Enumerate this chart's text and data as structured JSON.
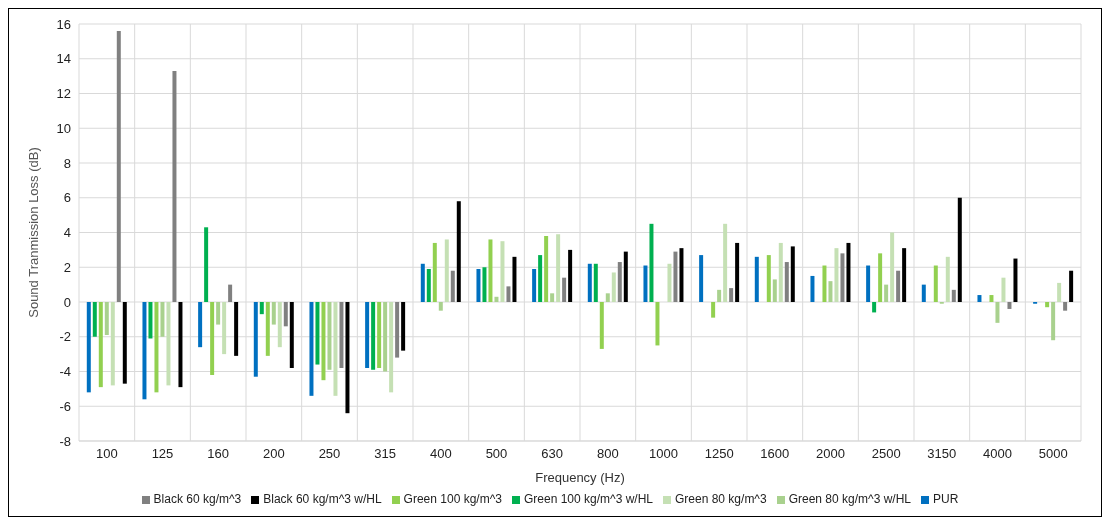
{
  "chart_data": {
    "type": "bar",
    "xlabel": "Frequency (Hz)",
    "ylabel": "Sound Tranmission Loss (dB)",
    "categories": [
      "100",
      "125",
      "160",
      "200",
      "250",
      "315",
      "400",
      "500",
      "630",
      "800",
      "1000",
      "1250",
      "1600",
      "2000",
      "2500",
      "3150",
      "4000",
      "5000"
    ],
    "series": [
      {
        "name": "PUR",
        "color": "#0070c0",
        "values": [
          -5.2,
          -5.6,
          -2.6,
          -4.3,
          -5.4,
          -3.8,
          2.2,
          1.9,
          1.9,
          2.2,
          2.1,
          2.7,
          2.6,
          1.5,
          2.1,
          1.0,
          0.4,
          -0.1
        ]
      },
      {
        "name": "Green 100 kg/m^3 w/HL",
        "color": "#00b050",
        "values": [
          -2.0,
          -2.1,
          4.3,
          -0.7,
          -3.6,
          -3.9,
          1.9,
          2.0,
          2.7,
          2.2,
          4.5,
          0,
          0,
          0,
          -0.6,
          0,
          0,
          0
        ]
      },
      {
        "name": "Green 100 kg/m^3",
        "color": "#92d050",
        "values": [
          -4.9,
          -5.2,
          -4.2,
          -3.1,
          -4.5,
          -3.8,
          3.4,
          3.6,
          3.8,
          -2.7,
          -2.5,
          -0.9,
          2.7,
          2.1,
          2.8,
          2.1,
          0.4,
          -0.3
        ]
      },
      {
        "name": "Green 80 kg/m^3 w/HL",
        "color": "#a9d18e",
        "values": [
          -1.9,
          -2.0,
          -1.3,
          -1.3,
          -3.9,
          -4.0,
          -0.5,
          0.3,
          0.5,
          0.5,
          0,
          0.7,
          1.3,
          1.2,
          1.0,
          -0.1,
          -1.2,
          -2.2
        ]
      },
      {
        "name": "Green 80 kg/m^3",
        "color": "#c5e0b4",
        "values": [
          -4.8,
          -4.8,
          -3.0,
          -2.6,
          -5.4,
          -5.2,
          3.6,
          3.5,
          3.9,
          1.7,
          2.2,
          4.5,
          3.4,
          3.1,
          4.0,
          2.6,
          1.4,
          1.1
        ]
      },
      {
        "name": "Black 60 kg/m^3",
        "color": "#808080",
        "values": [
          15.6,
          13.3,
          1.0,
          -1.4,
          -3.8,
          -3.2,
          1.8,
          0.9,
          1.4,
          2.3,
          2.9,
          0.8,
          2.3,
          2.8,
          1.8,
          0.7,
          -0.4,
          -0.5
        ]
      },
      {
        "name": "Black 60 kg/m^3 w/HL",
        "color": "#000000",
        "values": [
          -4.7,
          -4.9,
          -3.1,
          -3.8,
          -6.4,
          -2.8,
          5.8,
          2.6,
          3.0,
          2.9,
          3.1,
          3.4,
          3.2,
          3.4,
          3.1,
          6.0,
          2.5,
          1.8
        ]
      }
    ],
    "ylim": [
      -8,
      16
    ],
    "yticks": [
      -8,
      -6,
      -4,
      -2,
      0,
      2,
      4,
      6,
      8,
      10,
      12,
      14,
      16
    ],
    "grid": true,
    "legend": "bottom"
  }
}
